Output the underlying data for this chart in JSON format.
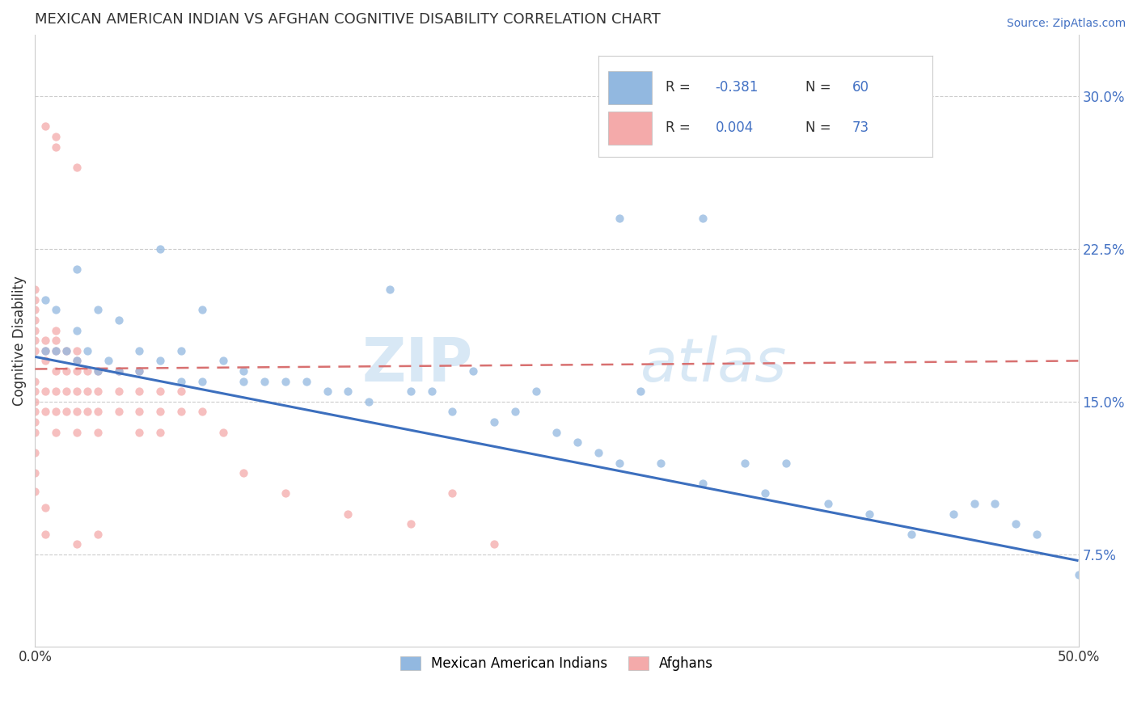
{
  "title": "MEXICAN AMERICAN INDIAN VS AFGHAN COGNITIVE DISABILITY CORRELATION CHART",
  "source": "Source: ZipAtlas.com",
  "ylabel": "Cognitive Disability",
  "xlim": [
    0.0,
    0.5
  ],
  "ylim": [
    0.03,
    0.33
  ],
  "ytick_vals": [
    0.075,
    0.15,
    0.225,
    0.3
  ],
  "ytick_labels": [
    "7.5%",
    "15.0%",
    "22.5%",
    "30.0%"
  ],
  "watermark": "ZIPatlas",
  "blue_color": "#92b8e0",
  "pink_color": "#f4aaaa",
  "blue_line_color": "#3c6fbe",
  "pink_line_color": "#d87070",
  "marker_size": 55,
  "marker_alpha": 0.75,
  "blue_line_start_y": 0.172,
  "blue_line_end_y": 0.072,
  "pink_line_y": 0.168,
  "blue_scatter_x": [
    0.005,
    0.005,
    0.01,
    0.01,
    0.015,
    0.02,
    0.02,
    0.02,
    0.025,
    0.03,
    0.03,
    0.035,
    0.04,
    0.04,
    0.05,
    0.05,
    0.06,
    0.06,
    0.07,
    0.07,
    0.08,
    0.08,
    0.09,
    0.1,
    0.1,
    0.11,
    0.12,
    0.13,
    0.14,
    0.15,
    0.16,
    0.17,
    0.18,
    0.19,
    0.2,
    0.21,
    0.22,
    0.23,
    0.24,
    0.25,
    0.26,
    0.27,
    0.28,
    0.29,
    0.3,
    0.32,
    0.34,
    0.35,
    0.36,
    0.38,
    0.4,
    0.42,
    0.44,
    0.45,
    0.46,
    0.47,
    0.48,
    0.5,
    0.28,
    0.32
  ],
  "blue_scatter_y": [
    0.175,
    0.2,
    0.175,
    0.195,
    0.175,
    0.17,
    0.185,
    0.215,
    0.175,
    0.165,
    0.195,
    0.17,
    0.165,
    0.19,
    0.165,
    0.175,
    0.17,
    0.225,
    0.16,
    0.175,
    0.16,
    0.195,
    0.17,
    0.16,
    0.165,
    0.16,
    0.16,
    0.16,
    0.155,
    0.155,
    0.15,
    0.205,
    0.155,
    0.155,
    0.145,
    0.165,
    0.14,
    0.145,
    0.155,
    0.135,
    0.13,
    0.125,
    0.12,
    0.155,
    0.12,
    0.11,
    0.12,
    0.105,
    0.12,
    0.1,
    0.095,
    0.085,
    0.095,
    0.1,
    0.1,
    0.09,
    0.085,
    0.065,
    0.24,
    0.24
  ],
  "pink_scatter_x": [
    0.0,
    0.0,
    0.0,
    0.0,
    0.0,
    0.0,
    0.0,
    0.0,
    0.0,
    0.0,
    0.0,
    0.0,
    0.0,
    0.0,
    0.005,
    0.005,
    0.005,
    0.005,
    0.005,
    0.01,
    0.01,
    0.01,
    0.01,
    0.01,
    0.01,
    0.01,
    0.015,
    0.015,
    0.015,
    0.015,
    0.02,
    0.02,
    0.02,
    0.02,
    0.02,
    0.02,
    0.025,
    0.025,
    0.025,
    0.03,
    0.03,
    0.03,
    0.03,
    0.04,
    0.04,
    0.04,
    0.05,
    0.05,
    0.05,
    0.05,
    0.06,
    0.06,
    0.06,
    0.07,
    0.07,
    0.08,
    0.09,
    0.1,
    0.12,
    0.15,
    0.18,
    0.2,
    0.22,
    0.03,
    0.01,
    0.005,
    0.01,
    0.02,
    0.0,
    0.0,
    0.005,
    0.005,
    0.02
  ],
  "pink_scatter_y": [
    0.175,
    0.18,
    0.185,
    0.19,
    0.195,
    0.2,
    0.205,
    0.16,
    0.155,
    0.15,
    0.145,
    0.14,
    0.135,
    0.125,
    0.17,
    0.175,
    0.18,
    0.155,
    0.145,
    0.175,
    0.18,
    0.185,
    0.165,
    0.155,
    0.145,
    0.135,
    0.175,
    0.165,
    0.155,
    0.145,
    0.175,
    0.17,
    0.165,
    0.155,
    0.145,
    0.135,
    0.165,
    0.155,
    0.145,
    0.165,
    0.155,
    0.145,
    0.135,
    0.165,
    0.155,
    0.145,
    0.165,
    0.155,
    0.145,
    0.135,
    0.155,
    0.145,
    0.135,
    0.155,
    0.145,
    0.145,
    0.135,
    0.115,
    0.105,
    0.095,
    0.09,
    0.105,
    0.08,
    0.085,
    0.28,
    0.285,
    0.275,
    0.265,
    0.115,
    0.106,
    0.098,
    0.085,
    0.08
  ]
}
